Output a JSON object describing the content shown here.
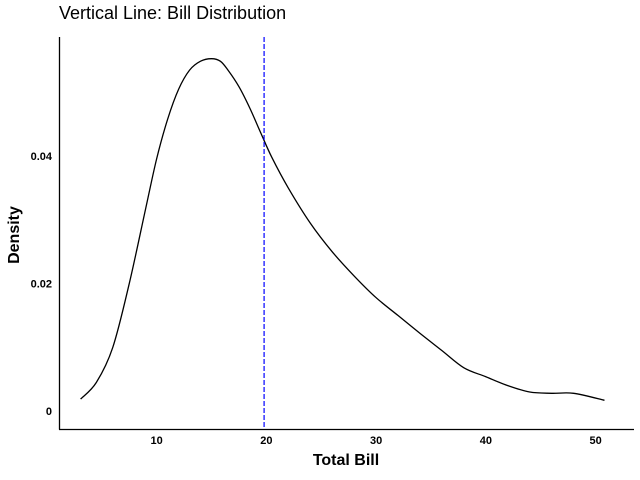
{
  "chart_data": {
    "type": "line",
    "title": "Vertical Line: Bill Distribution",
    "xlabel": "Total Bill",
    "ylabel": "Density",
    "xlim": [
      1.1,
      53.5
    ],
    "ylim": [
      -0.0028,
      0.0587
    ],
    "xticks": [
      10,
      20,
      30,
      40,
      50
    ],
    "xtick_labels": [
      "10",
      "20",
      "30",
      "40",
      "50"
    ],
    "yticks": [
      0,
      0.02,
      0.04
    ],
    "ytick_labels": [
      "0",
      "0.02",
      "0.04"
    ],
    "grid": false,
    "series": [
      {
        "color": "#000000",
        "x": [
          3.07,
          4.5,
          6,
          7.5,
          9,
          10,
          11,
          12,
          13,
          14,
          15,
          15.8,
          16.5,
          17.5,
          18.5,
          19.5,
          20.5,
          22,
          24,
          26,
          28,
          30,
          32,
          34,
          36,
          38,
          40,
          42,
          44,
          46,
          48,
          50.81
        ],
        "y": [
          0.0019,
          0.0045,
          0.01,
          0.02,
          0.0318,
          0.0396,
          0.0458,
          0.0505,
          0.0535,
          0.0549,
          0.0553,
          0.0549,
          0.0535,
          0.0509,
          0.0475,
          0.0436,
          0.0398,
          0.035,
          0.0295,
          0.025,
          0.0212,
          0.0178,
          0.015,
          0.0122,
          0.0095,
          0.0068,
          0.0054,
          0.004,
          0.003,
          0.0028,
          0.0028,
          0.0017
        ]
      }
    ],
    "vertical_line": {
      "x": 19.79,
      "color": "#0000ff",
      "style": "dashed"
    }
  }
}
